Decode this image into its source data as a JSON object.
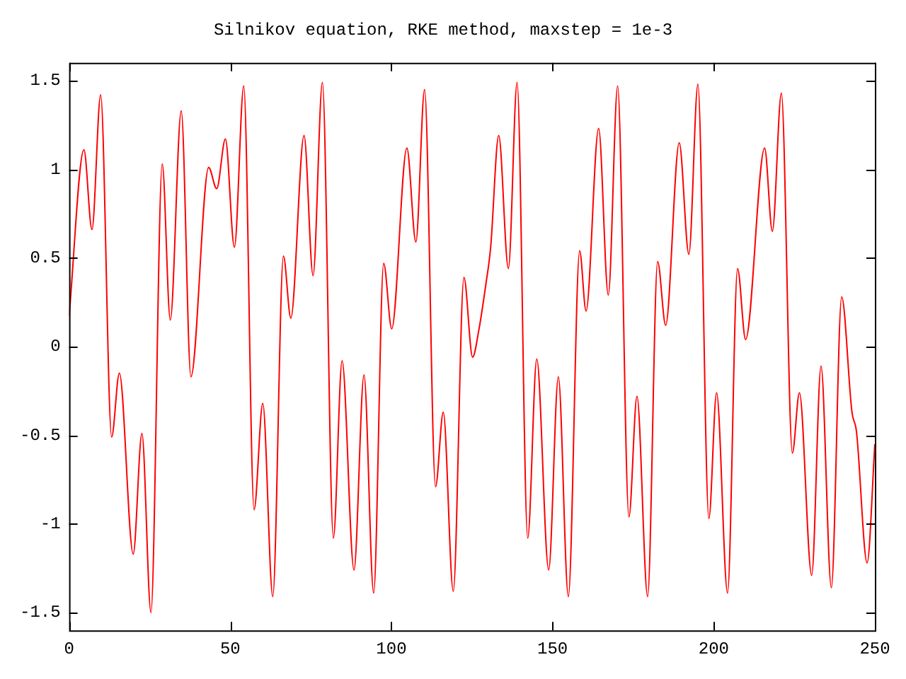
{
  "chart_data": {
    "type": "line",
    "title": "Silnikov equation, RKE method, maxstep = 1e-3",
    "x": [
      0,
      4.6,
      7.1,
      9.8,
      13.2,
      15.6,
      19.9,
      22.6,
      25.4,
      28.9,
      31.4,
      34.8,
      37.8,
      43.3,
      45.8,
      48.5,
      51.3,
      54.2,
      57.4,
      60.1,
      63.2,
      66.5,
      68.8,
      72.9,
      75.7,
      78.6,
      82.0,
      84.7,
      88.4,
      91.5,
      94.5,
      97.6,
      100.1,
      104.8,
      107.6,
      110.3,
      113.7,
      116.1,
      119.2,
      122.5,
      125.2,
      127.1,
      129.3,
      130.8,
      133.3,
      136.3,
      139.0,
      142.3,
      145.1,
      148.8,
      151.8,
      154.9,
      158.4,
      160.4,
      164.3,
      167.3,
      170.2,
      173.7,
      176.2,
      179.5,
      182.6,
      185.1,
      189.3,
      192.3,
      195.1,
      198.5,
      200.9,
      204.3,
      207.4,
      209.9,
      215.8,
      218.2,
      221.0,
      224.4,
      226.6,
      230.4,
      233.3,
      236.5,
      239.7,
      242.9,
      244.3,
      247.6,
      250
    ],
    "series": [
      {
        "color": "#ff0000",
        "values": [
          0.17,
          1.11,
          0.66,
          1.42,
          -0.51,
          -0.15,
          -1.17,
          -0.49,
          -1.5,
          1.03,
          0.15,
          1.33,
          -0.17,
          1.01,
          0.89,
          1.17,
          0.56,
          1.47,
          -0.92,
          -0.32,
          -1.41,
          0.51,
          0.16,
          1.19,
          0.4,
          1.49,
          -1.08,
          -0.08,
          -1.26,
          -0.16,
          -1.39,
          0.47,
          0.1,
          1.12,
          0.59,
          1.45,
          -0.79,
          -0.37,
          -1.38,
          0.39,
          -0.06,
          0.09,
          0.35,
          0.56,
          1.19,
          0.44,
          1.49,
          -1.08,
          -0.07,
          -1.26,
          -0.17,
          -1.41,
          0.54,
          0.2,
          1.23,
          0.29,
          1.47,
          -0.96,
          -0.28,
          -1.41,
          0.48,
          0.12,
          1.15,
          0.52,
          1.48,
          -0.97,
          -0.26,
          -1.39,
          0.44,
          0.04,
          1.12,
          0.65,
          1.43,
          -0.6,
          -0.26,
          -1.29,
          -0.11,
          -1.36,
          0.28,
          -0.37,
          -0.48,
          -1.22,
          -0.55
        ]
      }
    ],
    "xlim": [
      0,
      250
    ],
    "xticks": [
      0,
      50,
      100,
      150,
      200,
      250
    ],
    "ylim": [
      -1.6,
      1.6
    ],
    "yticks": [
      -1.5,
      -1,
      -0.5,
      0,
      0.5,
      1,
      1.5
    ],
    "grid": false,
    "legend": false,
    "marker": "none",
    "line_style": "solid"
  }
}
